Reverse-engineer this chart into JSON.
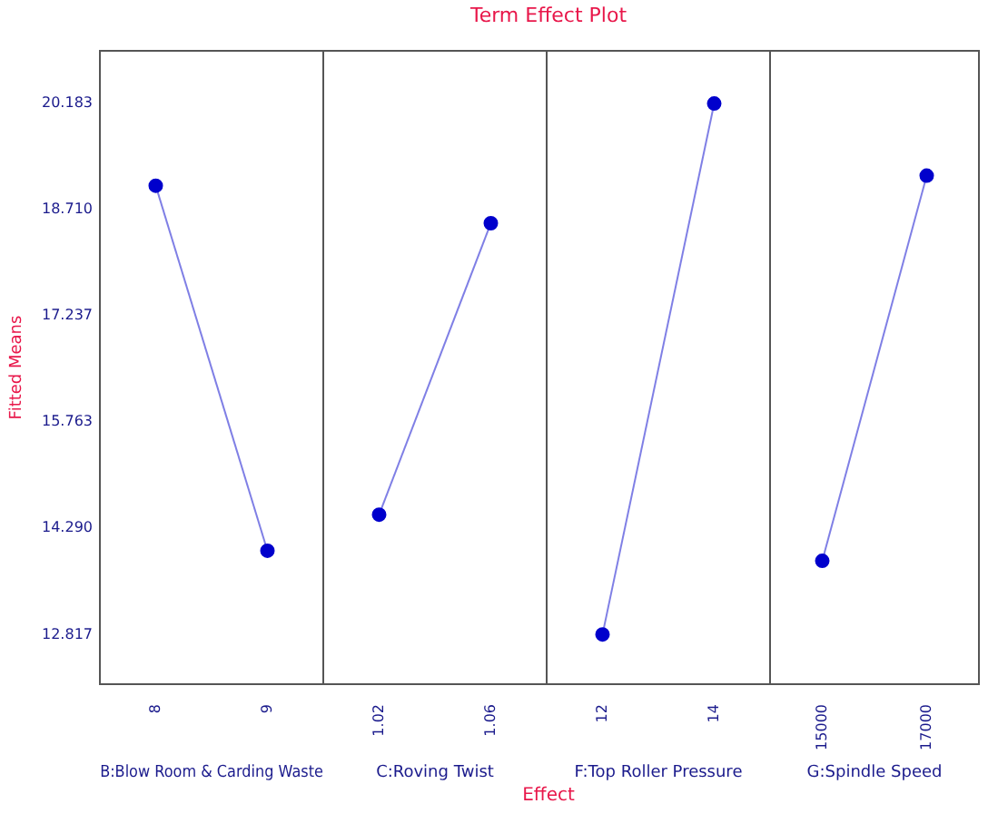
{
  "chart_data": [
    {
      "type": "other",
      "title": "Term Effect Plot",
      "annotations": [
        "Effect"
      ]
    },
    {
      "type": "line",
      "ylabel": "Fitted Means",
      "xlabel": "B:Blow Room & Carding Waste",
      "categories": [
        "8",
        "9"
      ],
      "marker": "circle",
      "series": [
        {
          "color": "#0000cc",
          "values": [
            19.04,
            13.98
          ]
        }
      ],
      "ylim": [
        12.13,
        20.91
      ],
      "yticks": [
        12.817,
        {
          "value": 14.29,
          "label": "14.290"
        },
        15.763,
        17.237,
        {
          "value": 18.71,
          "label": "18.710"
        },
        20.183
      ]
    },
    {
      "type": "line",
      "xlabel": "C:Roving Twist",
      "categories": [
        "1.02",
        "1.06"
      ],
      "marker": "circle",
      "tick_labels": "x",
      "series": [
        {
          "color": "#0000cc",
          "values": [
            14.48,
            18.52
          ]
        }
      ],
      "ylim": [
        12.13,
        20.91
      ]
    },
    {
      "type": "line",
      "xlabel": "F:Top Roller Pressure",
      "categories": [
        "12",
        "14"
      ],
      "marker": "circle",
      "tick_labels": "x",
      "series": [
        {
          "color": "#0000cc",
          "values": [
            12.82,
            20.18
          ]
        }
      ],
      "ylim": [
        12.13,
        20.91
      ]
    },
    {
      "type": "line",
      "xlabel": "G:Spindle Speed",
      "categories": [
        "15000",
        "17000"
      ],
      "marker": "circle",
      "tick_labels": "x",
      "series": [
        {
          "color": "#0000cc",
          "values": [
            13.84,
            19.18
          ]
        }
      ],
      "ylim": [
        12.13,
        20.91
      ]
    }
  ]
}
